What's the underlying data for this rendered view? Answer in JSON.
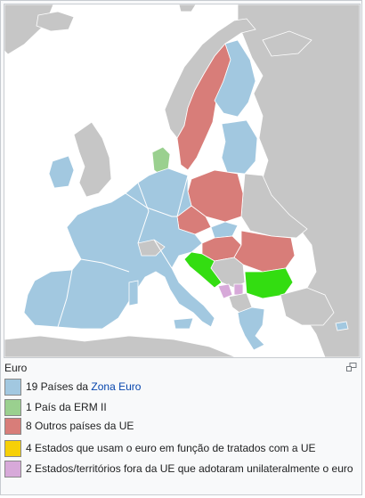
{
  "colors": {
    "sea": "#ffffff",
    "other_land": "#c6c6c6",
    "border": "#ffffff",
    "euro_zone": "#a2c8e0",
    "erm2": "#9ad08f",
    "other_eu": "#d87d79",
    "treaty_euro": "#f6d007",
    "unilateral_euro": "#d7a9d9",
    "bright_green": "#33dd11"
  },
  "caption": {
    "title": "Euro",
    "magnify_icon": "enlarge-icon"
  },
  "legend": [
    {
      "key": "euro_zone",
      "prefix": "19 Países da ",
      "link": "Zona Euro",
      "suffix": ""
    },
    {
      "key": "erm2",
      "prefix": "1 País da ERM II",
      "link": "",
      "suffix": ""
    },
    {
      "key": "other_eu",
      "prefix": "8 Outros países da UE",
      "link": "",
      "suffix": ""
    },
    {
      "key": "treaty_euro",
      "prefix": "4 Estados que usam o euro em função de tratados com a UE",
      "link": "",
      "suffix": ""
    },
    {
      "key": "unilateral_euro",
      "prefix": "2 Estados/territórios fora da UE que adotaram unilateralmente o euro",
      "link": "",
      "suffix": ""
    }
  ]
}
